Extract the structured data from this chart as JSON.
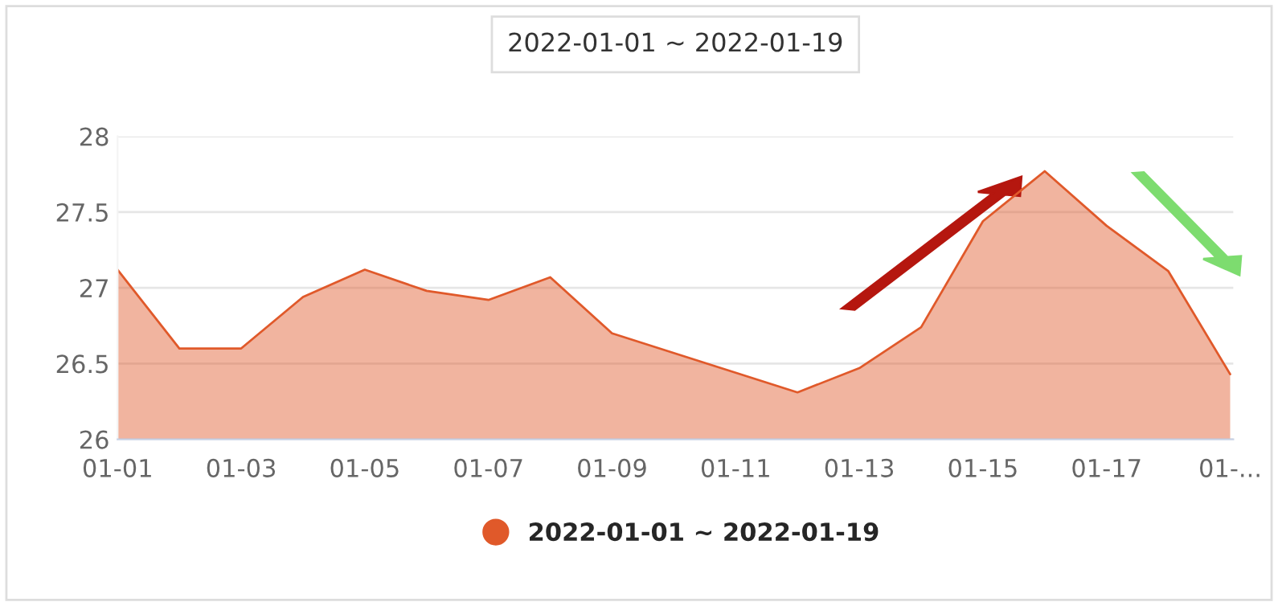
{
  "chart_data": {
    "type": "area",
    "title": "2022-01-01 ~ 2022-01-19",
    "categories": [
      "01-01",
      null,
      "01-03",
      null,
      "01-05",
      null,
      "01-07",
      null,
      "01-09",
      null,
      "01-11",
      null,
      "01-13",
      null,
      "01-15",
      null,
      "01-17",
      null,
      "01-..."
    ],
    "series": [
      {
        "name": "2022-01-01 ~ 2022-01-19",
        "color": "#e0592a",
        "values": [
          27.12,
          26.6,
          26.6,
          26.94,
          27.12,
          26.98,
          26.92,
          27.07,
          26.7,
          26.57,
          26.44,
          26.31,
          26.47,
          26.74,
          27.44,
          27.77,
          27.41,
          27.11,
          26.43
        ]
      }
    ],
    "ylim": [
      26,
      28
    ],
    "yticks": [
      26,
      26.5,
      27,
      27.5,
      28
    ],
    "grid": "y",
    "legend": "bottom",
    "marker": "none",
    "line_style": "solid"
  }
}
